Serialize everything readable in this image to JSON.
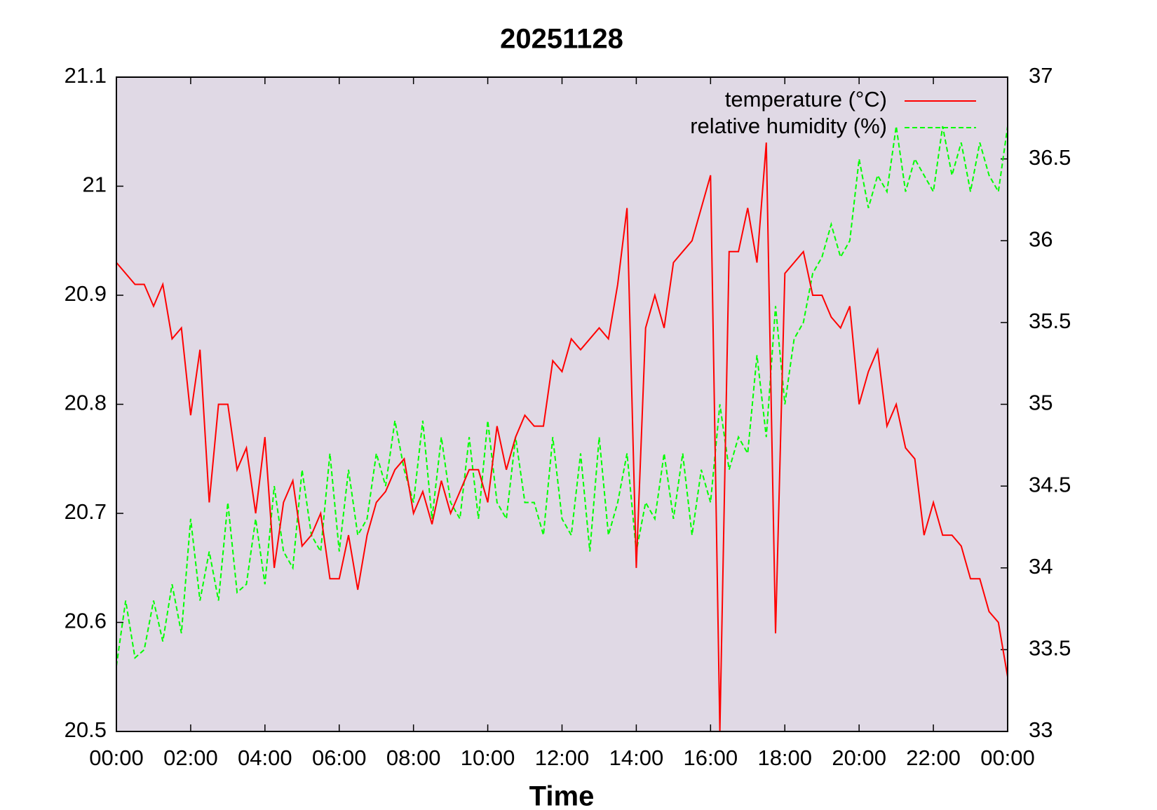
{
  "chart_data": {
    "type": "line",
    "title": "20251128",
    "x_label": "Time",
    "x": [
      0,
      0.25,
      0.5,
      0.75,
      1,
      1.25,
      1.5,
      1.75,
      2,
      2.25,
      2.5,
      2.75,
      3,
      3.25,
      3.5,
      3.75,
      4,
      4.25,
      4.5,
      4.75,
      5,
      5.25,
      5.5,
      5.75,
      6,
      6.25,
      6.5,
      6.75,
      7,
      7.25,
      7.5,
      7.75,
      8,
      8.25,
      8.5,
      8.75,
      9,
      9.25,
      9.5,
      9.75,
      10,
      10.25,
      10.5,
      10.75,
      11,
      11.25,
      11.5,
      11.75,
      12,
      12.25,
      12.5,
      12.75,
      13,
      13.25,
      13.5,
      13.75,
      14,
      14.25,
      14.5,
      14.75,
      15,
      15.25,
      15.5,
      15.75,
      16,
      16.25,
      16.5,
      16.75,
      17,
      17.25,
      17.5,
      17.75,
      18,
      18.25,
      18.5,
      18.75,
      19,
      19.25,
      19.5,
      19.75,
      20,
      20.25,
      20.5,
      20.75,
      21,
      21.25,
      21.5,
      21.75,
      22,
      22.25,
      22.5,
      22.75,
      23,
      23.25,
      23.5,
      23.75,
      24
    ],
    "series": [
      {
        "name": "temperature (°C)",
        "color": "#ff0000",
        "dash": false,
        "values": [
          20.93,
          20.92,
          20.91,
          20.91,
          20.89,
          20.91,
          20.86,
          20.87,
          20.79,
          20.85,
          20.71,
          20.8,
          20.8,
          20.74,
          20.76,
          20.7,
          20.77,
          20.65,
          20.71,
          20.73,
          20.67,
          20.68,
          20.7,
          20.64,
          20.64,
          20.68,
          20.63,
          20.68,
          20.71,
          20.72,
          20.74,
          20.75,
          20.7,
          20.72,
          20.69,
          20.73,
          20.7,
          20.72,
          20.74,
          20.74,
          20.71,
          20.78,
          20.74,
          20.77,
          20.79,
          20.78,
          20.78,
          20.84,
          20.83,
          20.86,
          20.85,
          20.86,
          20.87,
          20.86,
          20.91,
          20.98,
          20.65,
          20.87,
          20.9,
          20.87,
          20.93,
          20.94,
          20.95,
          20.98,
          21.01,
          20.5,
          20.94,
          20.94,
          20.98,
          20.93,
          21.04,
          20.59,
          20.92,
          20.93,
          20.94,
          20.9,
          20.9,
          20.88,
          20.87,
          20.89,
          20.8,
          20.83,
          20.85,
          20.78,
          20.8,
          20.76,
          20.75,
          20.68,
          20.71,
          20.68,
          20.68,
          20.67,
          20.64,
          20.64,
          20.61,
          20.6,
          20.55
        ]
      },
      {
        "name": "relative humidity (%)",
        "color": "#00ff00",
        "dash": true,
        "axis": "y2",
        "values": [
          33.4,
          33.8,
          33.45,
          33.5,
          33.8,
          33.55,
          33.9,
          33.6,
          34.3,
          33.8,
          34.1,
          33.8,
          34.4,
          33.85,
          33.9,
          34.3,
          33.9,
          34.5,
          34.1,
          34.0,
          34.6,
          34.2,
          34.1,
          34.7,
          34.1,
          34.6,
          34.2,
          34.3,
          34.7,
          34.5,
          34.9,
          34.6,
          34.4,
          34.9,
          34.3,
          34.8,
          34.4,
          34.3,
          34.8,
          34.3,
          34.9,
          34.4,
          34.3,
          34.8,
          34.4,
          34.4,
          34.2,
          34.8,
          34.3,
          34.2,
          34.7,
          34.1,
          34.8,
          34.2,
          34.4,
          34.7,
          34.1,
          34.4,
          34.3,
          34.7,
          34.3,
          34.7,
          34.2,
          34.6,
          34.4,
          35.0,
          34.6,
          34.8,
          34.7,
          35.3,
          34.8,
          35.6,
          35.0,
          35.4,
          35.5,
          35.8,
          35.9,
          36.1,
          35.9,
          36.0,
          36.5,
          36.2,
          36.4,
          36.3,
          36.7,
          36.3,
          36.5,
          36.4,
          36.3,
          36.7,
          36.4,
          36.6,
          36.3,
          36.6,
          36.4,
          36.3,
          36.7
        ]
      }
    ],
    "xlim": [
      0,
      24
    ],
    "xticks": [
      {
        "value": 0,
        "label": "00:00"
      },
      {
        "value": 2,
        "label": "02:00"
      },
      {
        "value": 4,
        "label": "04:00"
      },
      {
        "value": 6,
        "label": "06:00"
      },
      {
        "value": 8,
        "label": "08:00"
      },
      {
        "value": 10,
        "label": "10:00"
      },
      {
        "value": 12,
        "label": "12:00"
      },
      {
        "value": 14,
        "label": "14:00"
      },
      {
        "value": 16,
        "label": "16:00"
      },
      {
        "value": 18,
        "label": "18:00"
      },
      {
        "value": 20,
        "label": "20:00"
      },
      {
        "value": 22,
        "label": "22:00"
      },
      {
        "value": 24,
        "label": "00:00"
      }
    ],
    "ylim": [
      20.5,
      21.1
    ],
    "yticks": [
      20.5,
      20.6,
      20.7,
      20.8,
      20.9,
      21,
      21.1
    ],
    "y2lim": [
      33,
      37
    ],
    "y2ticks": [
      33,
      33.5,
      34,
      34.5,
      35,
      35.5,
      36,
      36.5,
      37
    ],
    "legend": "top-right",
    "background": "#e0d9e5"
  }
}
